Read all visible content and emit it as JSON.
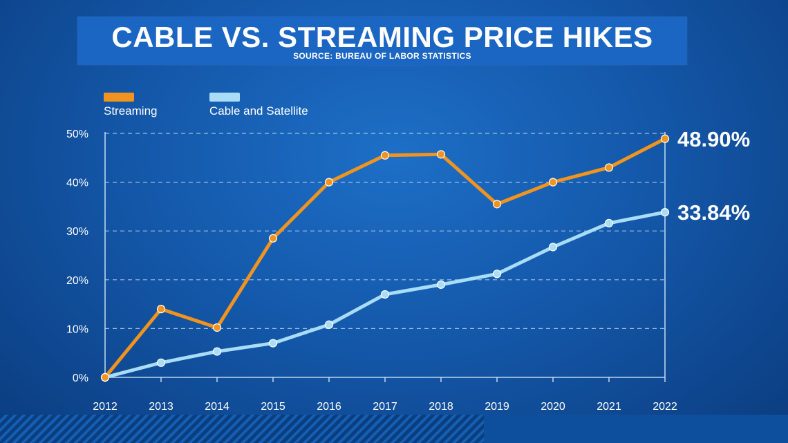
{
  "title": "CABLE VS. STREAMING PRICE HIKES",
  "subtitle": "SOURCE: BUREAU OF LABOR STATISTICS",
  "colors": {
    "streaming": "#f0941f",
    "cable": "#a8dcf7",
    "grid": "#cfe3f7",
    "text": "#ffffff"
  },
  "legend": [
    {
      "label": "Streaming",
      "color": "#f0941f"
    },
    {
      "label": "Cable and Satellite",
      "color": "#a8dcf7"
    }
  ],
  "chart_data": {
    "type": "line",
    "title": "CABLE VS. STREAMING PRICE HIKES",
    "subtitle": "SOURCE: BUREAU OF LABOR STATISTICS",
    "xlabel": "",
    "ylabel": "",
    "categories": [
      "2012",
      "2013",
      "2014",
      "2015",
      "2016",
      "2017",
      "2018",
      "2019",
      "2020",
      "2021",
      "2022"
    ],
    "ylim": [
      0,
      50
    ],
    "yticks": [
      0,
      10,
      20,
      30,
      40,
      50
    ],
    "ytick_labels": [
      "0%",
      "10%",
      "20%",
      "30%",
      "40%",
      "50%"
    ],
    "grid": true,
    "legend_position": "top-left",
    "series": [
      {
        "name": "Streaming",
        "values": [
          0,
          14.0,
          10.2,
          28.5,
          40.0,
          45.5,
          45.7,
          35.5,
          40.0,
          43.0,
          48.9
        ]
      },
      {
        "name": "Cable and Satellite",
        "values": [
          0,
          3.0,
          5.3,
          7.0,
          10.8,
          17.0,
          19.0,
          21.2,
          26.7,
          31.6,
          33.84
        ]
      }
    ],
    "end_labels": [
      "48.90%",
      "33.84%"
    ]
  }
}
